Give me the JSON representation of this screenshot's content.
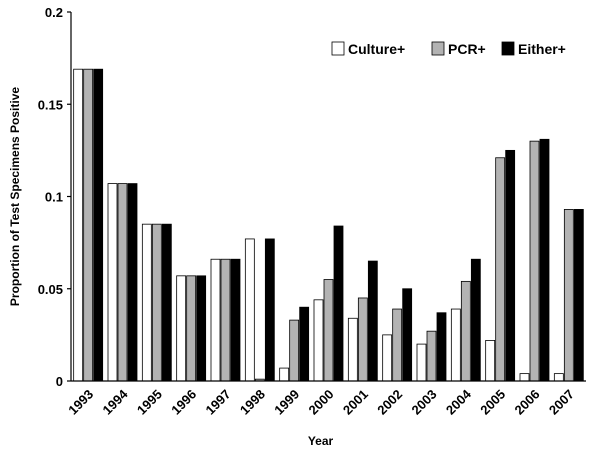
{
  "chart_data": {
    "type": "bar",
    "categories": [
      "1993",
      "1994",
      "1995",
      "1996",
      "1997",
      "1998",
      "1999",
      "2000",
      "2001",
      "2002",
      "2003",
      "2004",
      "2005",
      "2006",
      "2007"
    ],
    "series": [
      {
        "name": "Culture+",
        "color": "#ffffff",
        "values": [
          0.169,
          0.107,
          0.085,
          0.057,
          0.066,
          0.077,
          0.007,
          0.044,
          0.034,
          0.025,
          0.02,
          0.039,
          0.022,
          0.004,
          0.004
        ]
      },
      {
        "name": "PCR+",
        "color": "#b3b3b3",
        "values": [
          0.169,
          0.107,
          0.085,
          0.057,
          0.066,
          0.001,
          0.033,
          0.055,
          0.045,
          0.039,
          0.027,
          0.054,
          0.121,
          0.13,
          0.093
        ]
      },
      {
        "name": "Either+",
        "color": "#000000",
        "values": [
          0.169,
          0.107,
          0.085,
          0.057,
          0.066,
          0.077,
          0.04,
          0.084,
          0.065,
          0.05,
          0.037,
          0.066,
          0.125,
          0.131,
          0.093
        ]
      }
    ],
    "title": "",
    "xlabel": "Year",
    "ylabel": "Proportion of Test Specimens Positive",
    "ylim": [
      0,
      0.2
    ],
    "yticks": [
      "0",
      "0.05",
      "0.1",
      "0.15",
      "0.2"
    ],
    "ytick_values": [
      0,
      0.05,
      0.1,
      0.15,
      0.2
    ],
    "grid": false,
    "legend_position": "top-right"
  }
}
